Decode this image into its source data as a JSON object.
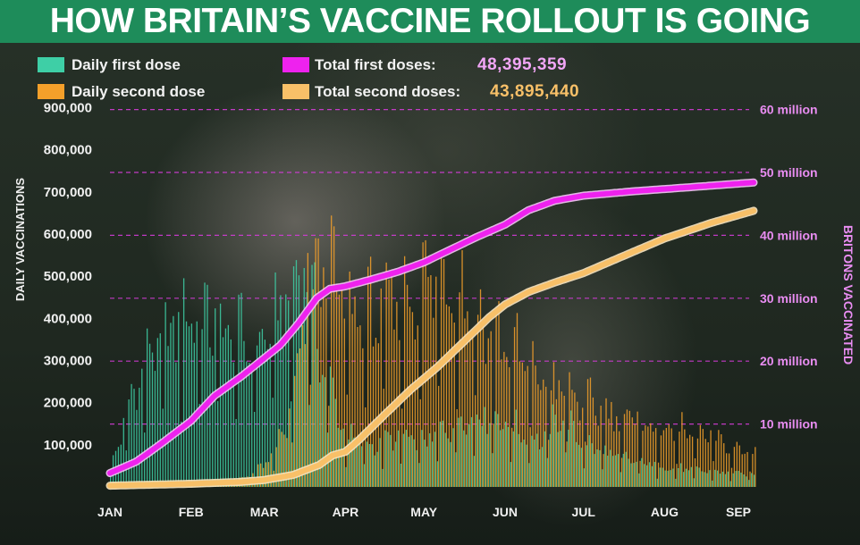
{
  "title": "HOW BRITAIN’S VACCINE ROLLOUT IS GOING",
  "legend": {
    "daily_first": "Daily first dose",
    "daily_second": "Daily second dose",
    "total_first": "Total first doses:",
    "total_first_value": "48,395,359",
    "total_second": "Total second doses:",
    "total_second_value": "43,895,440"
  },
  "colors": {
    "banner": "#1e8c5a",
    "daily_first": "#3ecfa6",
    "daily_second": "#f5a02a",
    "total_first": "#ee22ee",
    "total_second": "#f8c068",
    "right_axis": "#e98df2"
  },
  "chart_data": {
    "type": "bar",
    "left_axis": {
      "label": "DAILY VACCINATIONS",
      "ticks": [
        100000,
        200000,
        300000,
        400000,
        500000,
        600000,
        700000,
        800000,
        900000
      ],
      "tick_labels": [
        "100,000",
        "200,000",
        "300,000",
        "400,000",
        "500,000",
        "600,000",
        "700,000",
        "800,000",
        "900,000"
      ],
      "range": [
        0,
        950000
      ]
    },
    "right_axis": {
      "label": "BRITONS VACCINATED",
      "ticks": [
        10,
        20,
        30,
        40,
        50,
        60
      ],
      "tick_labels": [
        "10 million",
        "20 million",
        "30 million",
        "40 million",
        "50 million",
        "60 million"
      ],
      "range": [
        0,
        60
      ],
      "unit": "million"
    },
    "x_axis": {
      "labels": [
        "JAN",
        "FEB",
        "MAR",
        "APR",
        "MAY",
        "JUN",
        "JUL",
        "AUG",
        "SEP"
      ],
      "label_day": [
        0,
        31,
        59,
        90,
        120,
        151,
        181,
        212,
        243
      ],
      "last_day": 246
    },
    "grid": "dashed lines at right-axis ticks",
    "daily_first_weekly_pattern": [
      1.05,
      1.1,
      0.98,
      0.9,
      0.85,
      0.95,
      0.45
    ],
    "daily_second_weekly_pattern": [
      1.05,
      1.1,
      0.98,
      0.9,
      0.85,
      0.95,
      0.45
    ],
    "daily_first_envelope": [
      {
        "day": 0,
        "value": 40000
      },
      {
        "day": 8,
        "value": 220000
      },
      {
        "day": 15,
        "value": 330000
      },
      {
        "day": 25,
        "value": 390000
      },
      {
        "day": 33,
        "value": 430000
      },
      {
        "day": 45,
        "value": 380000
      },
      {
        "day": 55,
        "value": 340000
      },
      {
        "day": 62,
        "value": 400000
      },
      {
        "day": 70,
        "value": 480000
      },
      {
        "day": 74,
        "value": 560000
      },
      {
        "day": 80,
        "value": 330000
      },
      {
        "day": 90,
        "value": 120000
      },
      {
        "day": 100,
        "value": 100000
      },
      {
        "day": 110,
        "value": 120000
      },
      {
        "day": 120,
        "value": 110000
      },
      {
        "day": 135,
        "value": 170000
      },
      {
        "day": 145,
        "value": 180000
      },
      {
        "day": 155,
        "value": 140000
      },
      {
        "day": 165,
        "value": 110000
      },
      {
        "day": 172,
        "value": 180000
      },
      {
        "day": 180,
        "value": 110000
      },
      {
        "day": 195,
        "value": 70000
      },
      {
        "day": 215,
        "value": 45000
      },
      {
        "day": 246,
        "value": 30000
      }
    ],
    "daily_second_envelope": [
      {
        "day": 0,
        "value": 2000
      },
      {
        "day": 30,
        "value": 10000
      },
      {
        "day": 50,
        "value": 20000
      },
      {
        "day": 60,
        "value": 60000
      },
      {
        "day": 67,
        "value": 150000
      },
      {
        "day": 72,
        "value": 300000
      },
      {
        "day": 75,
        "value": 500000
      },
      {
        "day": 82,
        "value": 540000
      },
      {
        "day": 90,
        "value": 440000
      },
      {
        "day": 100,
        "value": 420000
      },
      {
        "day": 110,
        "value": 450000
      },
      {
        "day": 120,
        "value": 500000
      },
      {
        "day": 128,
        "value": 520000
      },
      {
        "day": 135,
        "value": 470000
      },
      {
        "day": 145,
        "value": 380000
      },
      {
        "day": 155,
        "value": 320000
      },
      {
        "day": 165,
        "value": 260000
      },
      {
        "day": 172,
        "value": 240000
      },
      {
        "day": 180,
        "value": 210000
      },
      {
        "day": 195,
        "value": 170000
      },
      {
        "day": 210,
        "value": 140000
      },
      {
        "day": 225,
        "value": 130000
      },
      {
        "day": 240,
        "value": 90000
      },
      {
        "day": 246,
        "value": 80000
      }
    ],
    "total_first_series": [
      {
        "day": 0,
        "value": 2.2
      },
      {
        "day": 10,
        "value": 4.0
      },
      {
        "day": 20,
        "value": 7.0
      },
      {
        "day": 31,
        "value": 10.5
      },
      {
        "day": 40,
        "value": 14.5
      },
      {
        "day": 50,
        "value": 17.5
      },
      {
        "day": 59,
        "value": 20.5
      },
      {
        "day": 65,
        "value": 22.5
      },
      {
        "day": 72,
        "value": 26.0
      },
      {
        "day": 79,
        "value": 30.0
      },
      {
        "day": 84,
        "value": 31.5
      },
      {
        "day": 90,
        "value": 31.9
      },
      {
        "day": 100,
        "value": 33.0
      },
      {
        "day": 110,
        "value": 34.2
      },
      {
        "day": 120,
        "value": 35.7
      },
      {
        "day": 130,
        "value": 37.7
      },
      {
        "day": 140,
        "value": 39.7
      },
      {
        "day": 151,
        "value": 41.7
      },
      {
        "day": 160,
        "value": 44.0
      },
      {
        "day": 170,
        "value": 45.5
      },
      {
        "day": 181,
        "value": 46.3
      },
      {
        "day": 200,
        "value": 47.0
      },
      {
        "day": 220,
        "value": 47.6
      },
      {
        "day": 246,
        "value": 48.4
      }
    ],
    "total_second_series": [
      {
        "day": 0,
        "value": 0.2
      },
      {
        "day": 31,
        "value": 0.5
      },
      {
        "day": 50,
        "value": 0.8
      },
      {
        "day": 59,
        "value": 1.1
      },
      {
        "day": 70,
        "value": 1.9
      },
      {
        "day": 80,
        "value": 3.5
      },
      {
        "day": 85,
        "value": 5.0
      },
      {
        "day": 90,
        "value": 5.6
      },
      {
        "day": 95,
        "value": 7.4
      },
      {
        "day": 105,
        "value": 11.5
      },
      {
        "day": 115,
        "value": 15.5
      },
      {
        "day": 125,
        "value": 19.0
      },
      {
        "day": 135,
        "value": 23.0
      },
      {
        "day": 145,
        "value": 27.0
      },
      {
        "day": 151,
        "value": 29.0
      },
      {
        "day": 160,
        "value": 31.0
      },
      {
        "day": 170,
        "value": 32.5
      },
      {
        "day": 181,
        "value": 34.0
      },
      {
        "day": 195,
        "value": 36.5
      },
      {
        "day": 212,
        "value": 39.5
      },
      {
        "day": 230,
        "value": 42.0
      },
      {
        "day": 246,
        "value": 43.9
      }
    ]
  }
}
